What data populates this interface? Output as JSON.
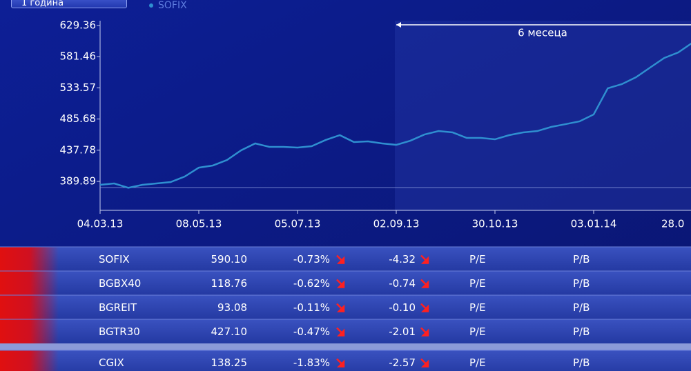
{
  "button": "1 година",
  "chart_data": {
    "type": "line",
    "annotation": "6 месеца",
    "categories": [
      "04.03.13",
      null,
      null,
      null,
      null,
      null,
      null,
      "08.05.13",
      null,
      null,
      null,
      null,
      null,
      null,
      "05.07.13",
      null,
      null,
      null,
      null,
      null,
      null,
      "02.09.13",
      null,
      null,
      null,
      null,
      null,
      null,
      "30.10.13",
      null,
      null,
      null,
      null,
      null,
      null,
      "03.01.14",
      null,
      null,
      null,
      null,
      null,
      null,
      "28.0"
    ],
    "series": [
      {
        "name": "SOFIX",
        "color": "#2f8fd0",
        "values": [
          384.6,
          386.7,
          380,
          384.6,
          386.7,
          388.8,
          397.3,
          411,
          414.3,
          422.7,
          437.6,
          448.2,
          442.9,
          442.9,
          441.8,
          443.9,
          453.5,
          460.9,
          450.3,
          451.3,
          448.2,
          446,
          452.4,
          461.9,
          467.2,
          465.1,
          456.6,
          456.6,
          454.5,
          460.9,
          465.1,
          467.2,
          473.6,
          477.8,
          482.1,
          492.7,
          532.9,
          539.3,
          549.9,
          564.7,
          579.5,
          588,
          602.9
        ]
      }
    ],
    "ylim": [
      345.4,
      629.36
    ],
    "yticks": [
      389.89,
      437.78,
      485.68,
      533.57,
      581.46,
      629.36
    ]
  },
  "table": {
    "rows": [
      [
        "SOFIX",
        "590.10",
        "-0.73%",
        "-4.32",
        "P/E",
        "P/B"
      ],
      [
        "BGBX40",
        "118.76",
        "-0.62%",
        "-0.74",
        "P/E",
        "P/B"
      ],
      [
        "BGREIT",
        "93.08",
        "-0.11%",
        "-0.10",
        "P/E",
        "P/B"
      ],
      [
        "BGTR30",
        "427.10",
        "-0.47%",
        "-2.01",
        "P/E",
        "P/B"
      ],
      [
        "CGIX",
        "138.25",
        "-1.83%",
        "-2.57",
        "P/E",
        "P/B"
      ]
    ]
  }
}
